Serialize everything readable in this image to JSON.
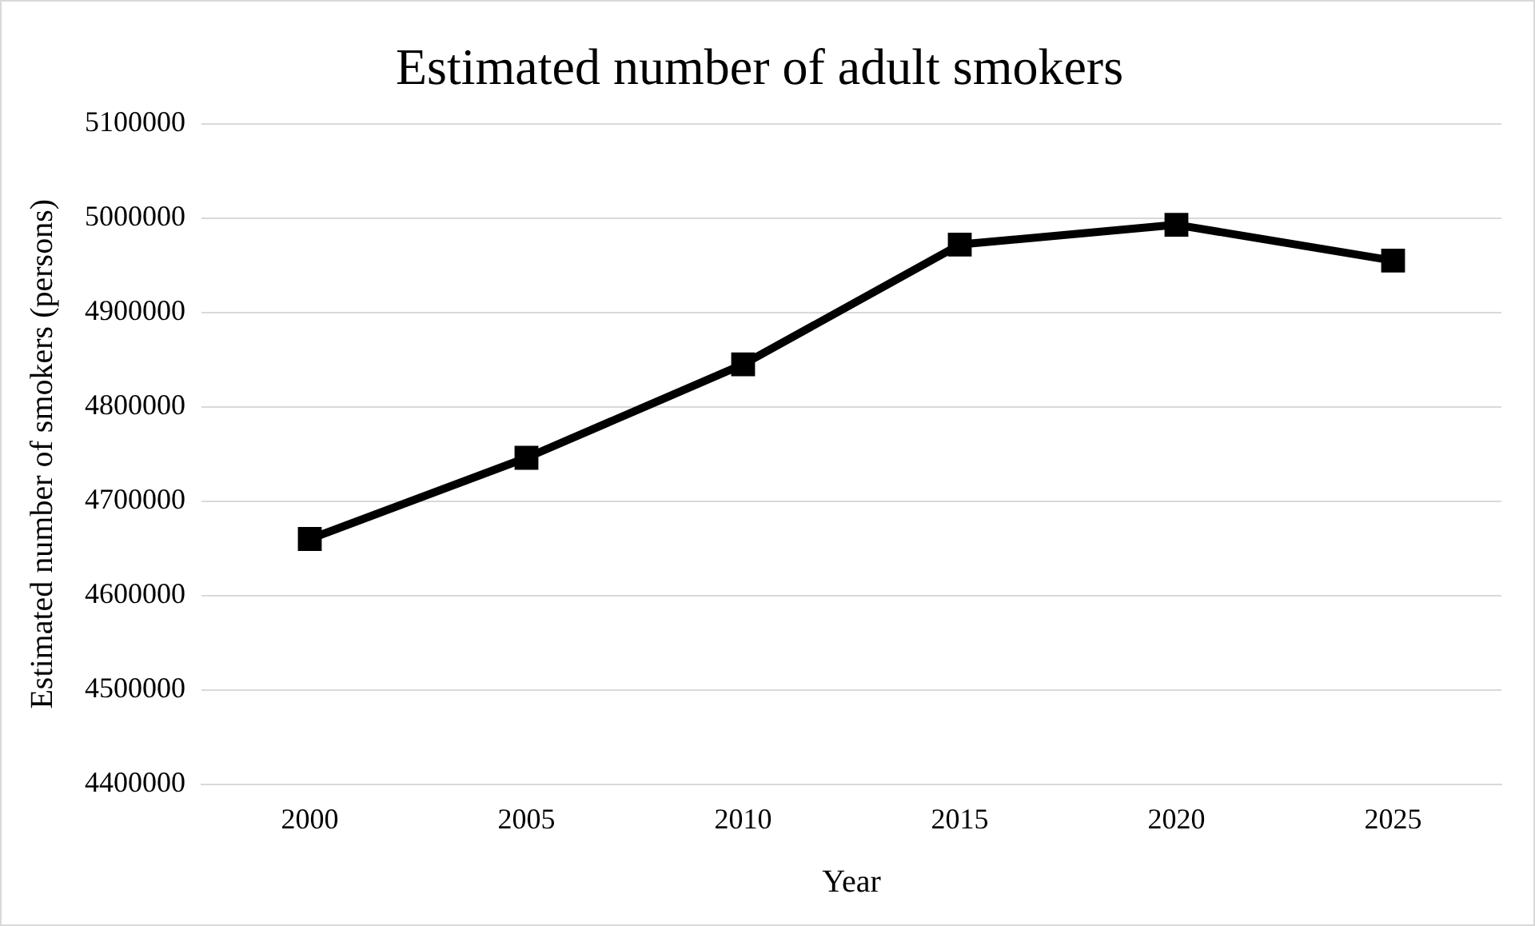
{
  "chart_data": {
    "type": "line",
    "title": "Estimated number of adult smokers",
    "xlabel": "Year",
    "ylabel": "Estimated number of smokers (persons)",
    "categories": [
      "2000",
      "2005",
      "2010",
      "2015",
      "2020",
      "2025"
    ],
    "series": [
      {
        "color": "#000000",
        "values": [
          4660000,
          4746000,
          4845000,
          4972000,
          4993000,
          4955000
        ]
      }
    ],
    "ylim": [
      4400000,
      5100000
    ],
    "yticks": [
      4400000,
      4500000,
      4600000,
      4700000,
      4800000,
      4900000,
      5000000,
      5100000
    ],
    "grid": "y",
    "legend": false,
    "marker": "square",
    "line_style": "solid"
  }
}
